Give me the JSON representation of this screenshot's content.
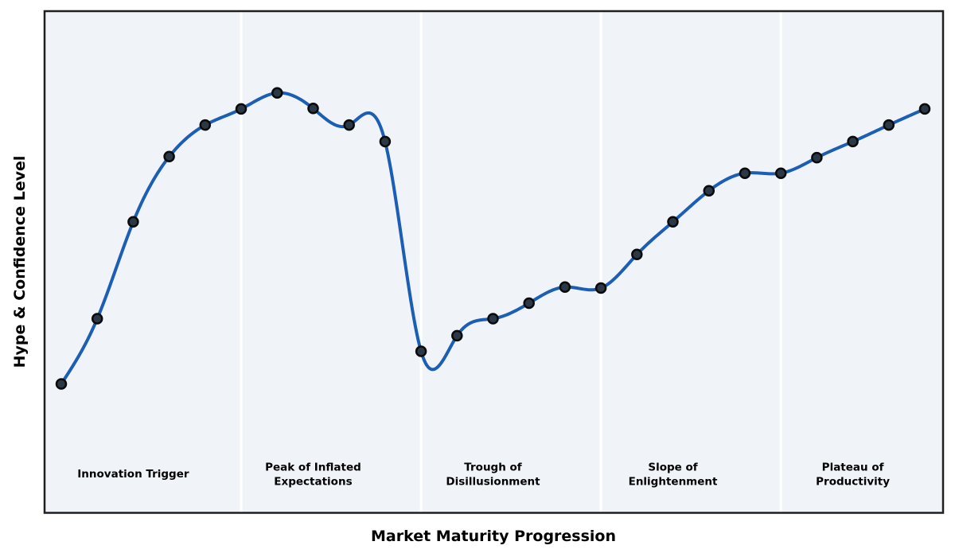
{
  "chart_data": {
    "type": "line",
    "title": "",
    "xlabel": "Market Maturity Progression",
    "ylabel": "Hype & Confidence Level",
    "x": [
      0,
      1,
      2,
      3,
      4,
      5,
      6,
      7,
      8,
      9,
      10,
      11,
      12,
      13,
      14,
      15,
      16,
      17,
      18,
      19,
      20,
      21,
      22,
      23,
      24
    ],
    "values": [
      25.7,
      38.7,
      58.0,
      71.0,
      77.3,
      80.5,
      83.7,
      80.6,
      77.3,
      74.0,
      32.2,
      35.3,
      38.7,
      41.8,
      45.0,
      44.8,
      51.5,
      58.0,
      64.2,
      67.7,
      67.7,
      70.8,
      74.0,
      77.3,
      80.5
    ],
    "ylim": [
      0,
      100
    ],
    "xlim": [
      -0.47,
      24.5
    ],
    "smoothing": "cubic-spline",
    "markers": true,
    "grid": false,
    "legend": "none",
    "ticks_visible": false,
    "phase_separators_x": [
      5,
      10,
      15,
      20
    ],
    "phases": [
      {
        "label": "Innovation Trigger",
        "start": 0,
        "end": 5,
        "label_x": 2
      },
      {
        "label": "Peak of Inflated\nExpectations",
        "start": 5,
        "end": 10,
        "label_x": 7
      },
      {
        "label": "Trough of\nDisillusionment",
        "start": 10,
        "end": 15,
        "label_x": 12
      },
      {
        "label": "Slope of\nEnlightenment",
        "start": 15,
        "end": 20,
        "label_x": 17
      },
      {
        "label": "Plateau of\nProductivity",
        "start": 20,
        "end": 24,
        "label_x": 22
      }
    ],
    "colors": {
      "line": "#1b5eb4",
      "marker_fill": "#2b3947",
      "marker_edge": "#0a0a0a",
      "band_fill": "#f0f4f8",
      "separator": "#ffffff",
      "border": "#1f1f1f",
      "text": "#000000"
    }
  }
}
